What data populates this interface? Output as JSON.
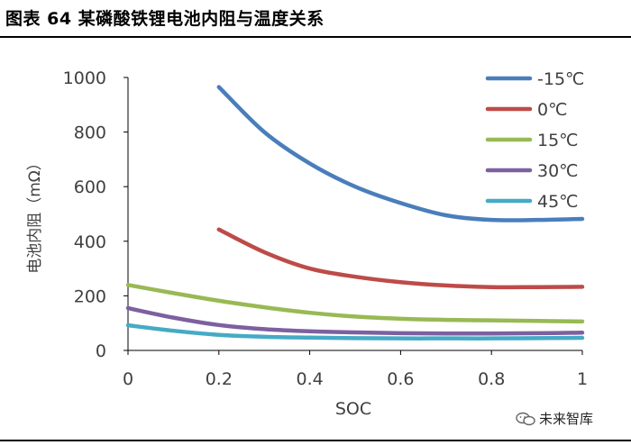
{
  "header": {
    "title": "图表 64 某磷酸铁锂电池内阻与温度关系"
  },
  "watermark": {
    "text": "未来智库",
    "icon": "wechat-icon"
  },
  "chart_data": {
    "type": "line",
    "title": "",
    "xlabel": "SOC",
    "ylabel": "电池内阻（mΩ）",
    "xlim": [
      0,
      1
    ],
    "ylim": [
      0,
      1000
    ],
    "x_ticks": [
      "0",
      "0.2",
      "0.4",
      "0.6",
      "0.8",
      "1"
    ],
    "y_ticks": [
      "0",
      "200",
      "400",
      "600",
      "800",
      "1000"
    ],
    "grid": false,
    "legend_position": "top-right",
    "series": [
      {
        "name": "-15℃",
        "color": "#4a7ebb",
        "x": [
          0.2,
          0.3,
          0.4,
          0.5,
          0.6,
          0.7,
          0.8,
          0.9,
          1.0
        ],
        "y": [
          965,
          800,
          685,
          600,
          540,
          495,
          478,
          478,
          482
        ]
      },
      {
        "name": "0℃",
        "color": "#be4b48",
        "x": [
          0.2,
          0.3,
          0.4,
          0.5,
          0.6,
          0.7,
          0.8,
          0.9,
          1.0
        ],
        "y": [
          443,
          360,
          300,
          270,
          250,
          238,
          232,
          232,
          233
        ]
      },
      {
        "name": "15℃",
        "color": "#98b954",
        "x": [
          0,
          0.1,
          0.2,
          0.3,
          0.4,
          0.5,
          0.6,
          0.7,
          0.8,
          0.9,
          1.0
        ],
        "y": [
          240,
          210,
          182,
          158,
          138,
          124,
          116,
          112,
          110,
          108,
          106
        ]
      },
      {
        "name": "30℃",
        "color": "#7d60a0",
        "x": [
          0,
          0.1,
          0.2,
          0.3,
          0.4,
          0.5,
          0.6,
          0.7,
          0.8,
          0.9,
          1.0
        ],
        "y": [
          155,
          120,
          93,
          78,
          70,
          66,
          63,
          62,
          62,
          63,
          65
        ]
      },
      {
        "name": "45℃",
        "color": "#46aac5",
        "x": [
          0,
          0.1,
          0.2,
          0.3,
          0.4,
          0.5,
          0.6,
          0.7,
          0.8,
          0.9,
          1.0
        ],
        "y": [
          92,
          72,
          57,
          50,
          47,
          45,
          44,
          44,
          44,
          45,
          46
        ]
      }
    ]
  }
}
